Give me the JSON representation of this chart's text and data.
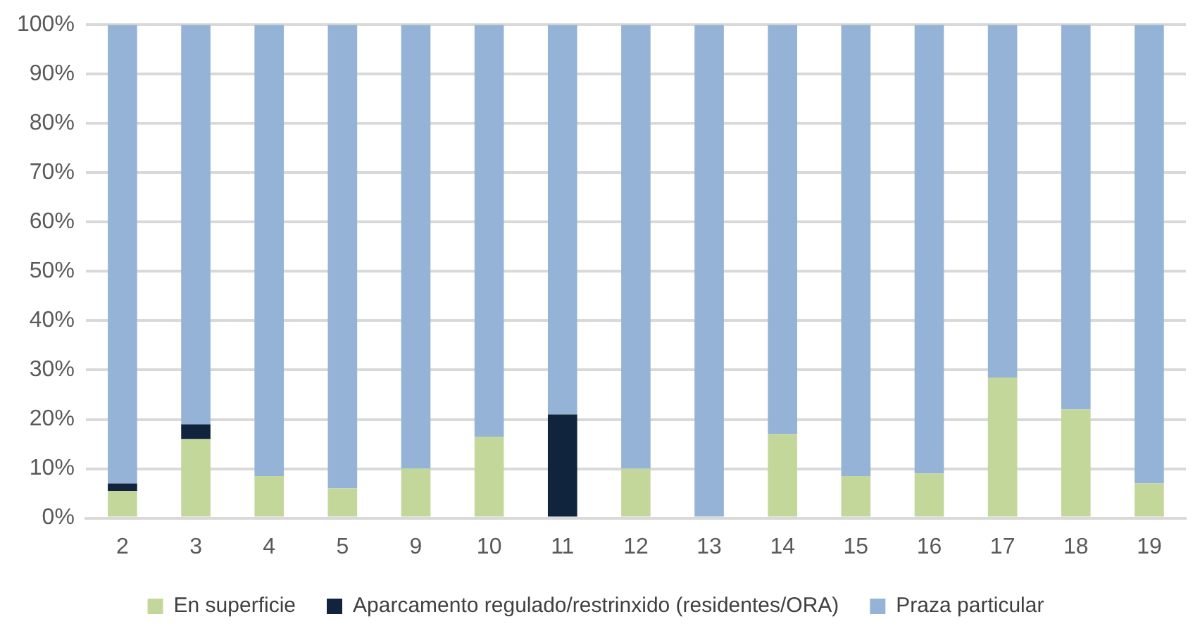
{
  "chart_data": {
    "type": "bar",
    "stacked": true,
    "categories": [
      "2",
      "3",
      "4",
      "5",
      "9",
      "10",
      "11",
      "12",
      "13",
      "14",
      "15",
      "16",
      "17",
      "18",
      "19"
    ],
    "series": [
      {
        "name": "En superficie",
        "color": "#c4d79b",
        "values": [
          5.5,
          16,
          8.5,
          6,
          10,
          16.5,
          0,
          10,
          0,
          17,
          8.5,
          9,
          28.5,
          22,
          7
        ]
      },
      {
        "name": "Aparcamento regulado/restrinxido (residentes/ORA)",
        "color": "#10243e",
        "values": [
          1.5,
          3,
          0,
          0,
          0,
          0,
          21,
          0,
          0,
          0,
          0,
          0,
          0,
          0,
          0
        ]
      },
      {
        "name": "Praza particular",
        "color": "#95b3d7",
        "values": [
          93,
          81,
          91.5,
          94,
          90,
          83.5,
          79,
          90,
          100,
          83,
          91.5,
          91,
          71.5,
          78,
          93
        ]
      }
    ],
    "ylim": [
      0,
      100
    ],
    "yticks": [
      {
        "value": 0,
        "label": "0%"
      },
      {
        "value": 10,
        "label": "10%"
      },
      {
        "value": 20,
        "label": "20%"
      },
      {
        "value": 30,
        "label": "30%"
      },
      {
        "value": 40,
        "label": "40%"
      },
      {
        "value": 50,
        "label": "50%"
      },
      {
        "value": 60,
        "label": "60%"
      },
      {
        "value": 70,
        "label": "70%"
      },
      {
        "value": 80,
        "label": "80%"
      },
      {
        "value": 90,
        "label": "90%"
      },
      {
        "value": 100,
        "label": "100%"
      }
    ],
    "grid": "y",
    "legend": "bottom"
  }
}
